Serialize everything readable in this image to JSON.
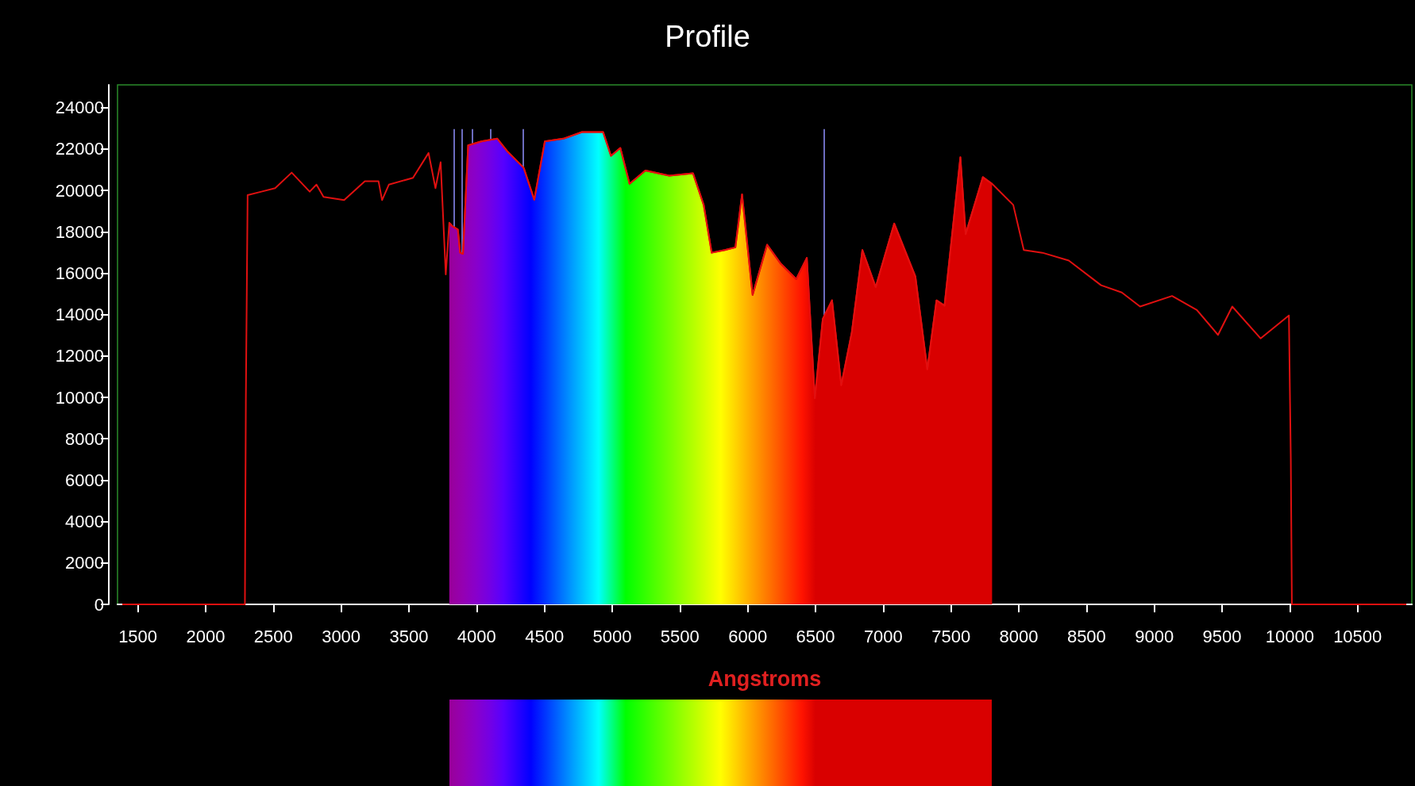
{
  "chart_data": {
    "type": "line",
    "title": "Profile",
    "xlabel": "Angstroms",
    "xlim": [
      1350,
      10900
    ],
    "ylim": [
      0,
      25100
    ],
    "xticks": [
      1500,
      2000,
      2500,
      3000,
      3500,
      4000,
      4500,
      5000,
      5500,
      6000,
      6500,
      7000,
      7500,
      8000,
      8500,
      9000,
      9500,
      10000,
      10500
    ],
    "yticks": [
      0,
      2000,
      4000,
      6000,
      8000,
      10000,
      12000,
      14000,
      16000,
      18000,
      20000,
      22000,
      24000
    ],
    "grid": false,
    "marker": "none",
    "line_style": "solid",
    "series": [
      {
        "type": "line",
        "color": "#e01010",
        "x": [
          1385,
          2290,
          2297,
          2310,
          2412,
          2513,
          2635,
          2768,
          2818,
          2870,
          3022,
          3175,
          3276,
          3302,
          3352,
          3530,
          3645,
          3696,
          3734,
          3772,
          3798,
          3820,
          3861,
          3878,
          3899,
          3937,
          4035,
          4152,
          4230,
          4347,
          4425,
          4503,
          4640,
          4777,
          4933,
          4991,
          5060,
          5128,
          5245,
          5421,
          5596,
          5675,
          5734,
          5831,
          5909,
          5958,
          6036,
          6143,
          6241,
          6358,
          6436,
          6495,
          6554,
          6622,
          6690,
          6768,
          6846,
          6944,
          7081,
          7237,
          7325,
          7393,
          7452,
          7569,
          7608,
          7735,
          7803,
          7959,
          8037,
          8174,
          8369,
          8607,
          8760,
          8895,
          9131,
          9314,
          9470,
          9575,
          9784,
          9993,
          10007,
          10015,
          10860
        ],
        "values": [
          0,
          0,
          9940,
          19770,
          19940,
          20110,
          20860,
          19940,
          20280,
          19690,
          19530,
          20440,
          20440,
          19530,
          20280,
          20610,
          21810,
          20110,
          21360,
          15940,
          18440,
          18270,
          18110,
          16990,
          16940,
          22180,
          22370,
          22500,
          21860,
          21090,
          19550,
          22370,
          22500,
          22820,
          22820,
          21670,
          22050,
          20320,
          20960,
          20710,
          20830,
          19300,
          16990,
          17120,
          17250,
          19810,
          14950,
          17380,
          16480,
          15710,
          16740,
          9960,
          13800,
          14690,
          10590,
          13150,
          17120,
          15330,
          18400,
          15840,
          11360,
          14690,
          14430,
          21600,
          17890,
          20640,
          20320,
          19300,
          17120,
          16990,
          16610,
          15420,
          15070,
          14390,
          14900,
          14220,
          13020,
          14390,
          12850,
          13960,
          7020,
          0,
          0
        ]
      },
      {
        "type": "area",
        "color": "#ff0000",
        "x": [
          3798,
          3820,
          3861,
          3878,
          3899,
          3937,
          4035,
          4152,
          4230,
          4347,
          4425,
          4503,
          4640,
          4777,
          4933,
          4991,
          5060,
          5128,
          5245,
          5421,
          5596,
          5675,
          5734,
          5831,
          5909,
          5958,
          6036,
          6143,
          6241,
          6358,
          6436,
          6495,
          6554,
          6622,
          6690,
          6768,
          6846,
          6944,
          7081,
          7237,
          7325,
          7393,
          7452,
          7569,
          7608,
          7735,
          7803
        ],
        "values": [
          18440,
          18270,
          18110,
          16990,
          16940,
          22180,
          22370,
          22500,
          21860,
          21090,
          19550,
          22370,
          22500,
          22820,
          22820,
          21670,
          22050,
          20320,
          20960,
          20710,
          20830,
          19300,
          16990,
          17120,
          17250,
          19810,
          14950,
          17380,
          16480,
          15710,
          16740,
          9960,
          13800,
          14690,
          10590,
          13150,
          17120,
          15330,
          18400,
          15840,
          11360,
          14690,
          14430,
          21600,
          17890,
          20640,
          20320
        ]
      }
    ],
    "ref_lines": [
      {
        "axis": "x",
        "value": 3835,
        "color": "#9090ff"
      },
      {
        "axis": "x",
        "value": 3889,
        "color": "#9090ff"
      },
      {
        "axis": "x",
        "value": 3970,
        "color": "#9090ff"
      },
      {
        "axis": "x",
        "value": 4102,
        "color": "#9090ff"
      },
      {
        "axis": "x",
        "value": 4340,
        "color": "#9090ff"
      },
      {
        "axis": "x",
        "value": 6563,
        "color": "#9090ff"
      }
    ]
  }
}
